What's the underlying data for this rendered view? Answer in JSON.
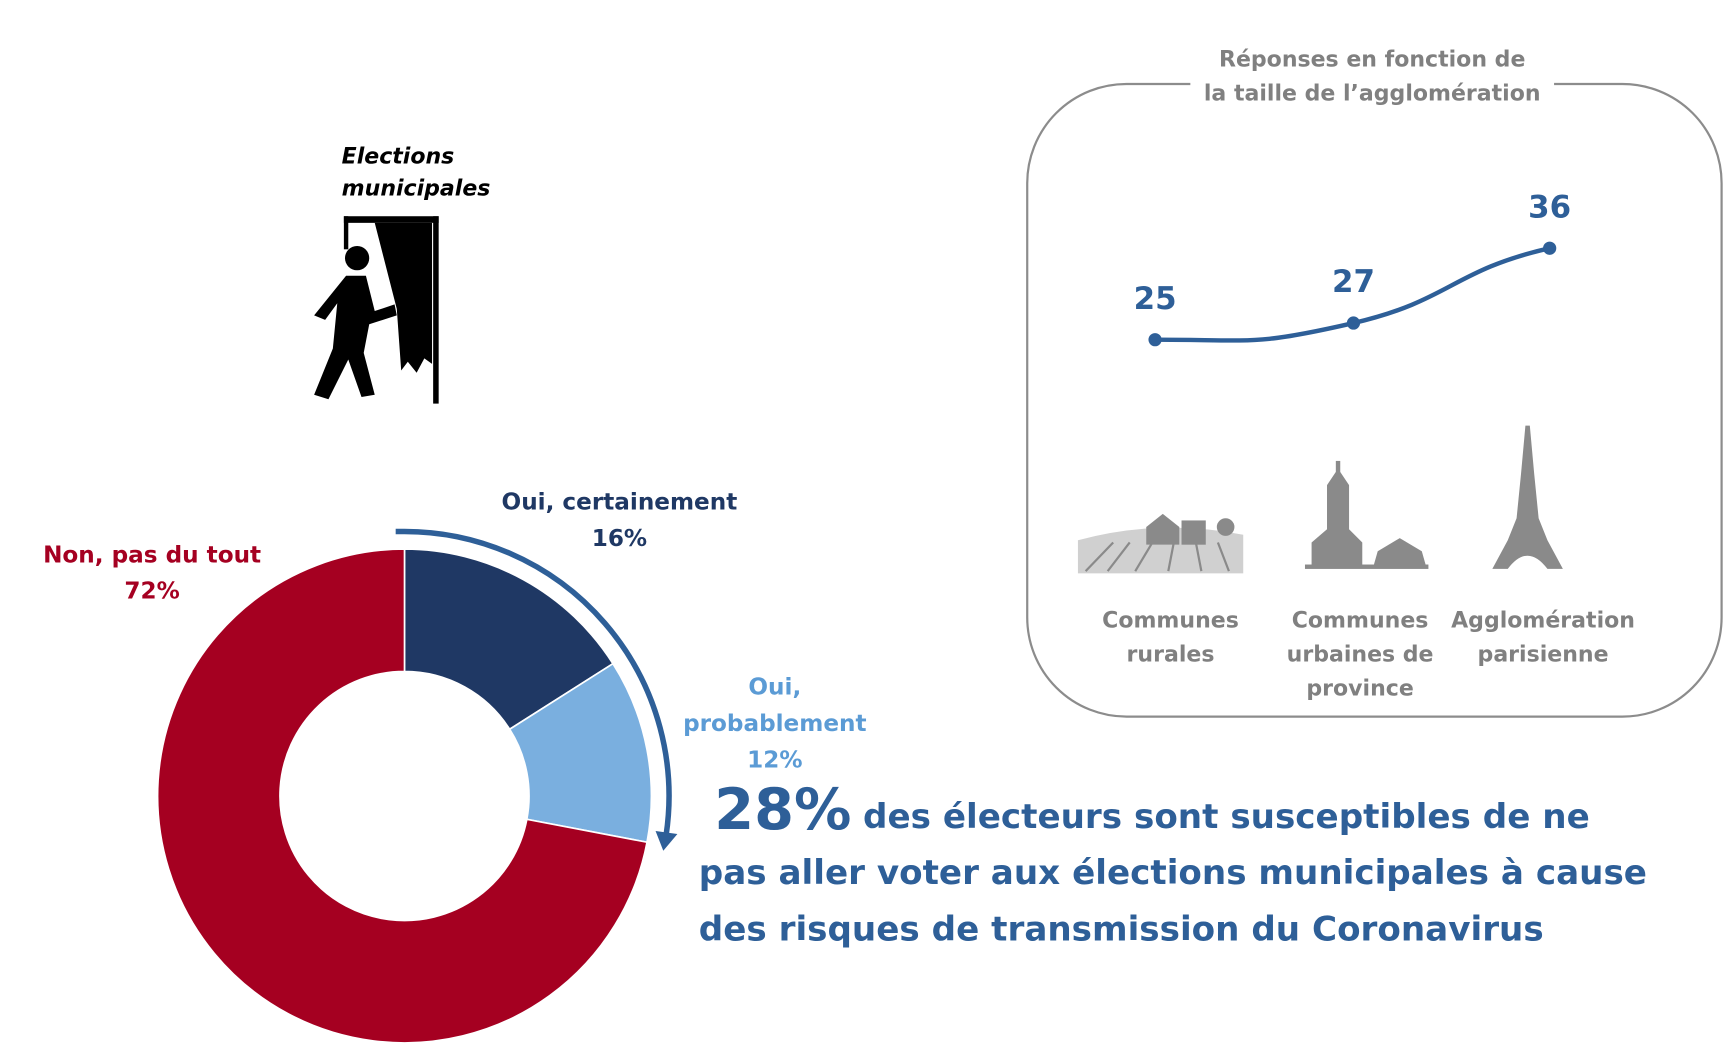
{
  "icon_label": [
    "Elections",
    "municipales"
  ],
  "chart_data": [
    {
      "type": "pie",
      "donut": true,
      "categories": [
        "Oui, certainement",
        "Oui, probablement",
        "Non, pas du tout"
      ],
      "values": [
        16,
        12,
        72
      ],
      "value_labels": [
        "16%",
        "12%",
        "72%"
      ],
      "colors": [
        "#1f3864",
        "#7aafdf",
        "#a50021"
      ],
      "label_colors": [
        "#1f3864",
        "#5b9bd5",
        "#a50021"
      ]
    },
    {
      "type": "line",
      "title": [
        "Réponses en fonction de",
        "la taille de l’agglomération"
      ],
      "categories": [
        "Communes rurales",
        "Communes urbaines de province",
        "Agglomération parisienne"
      ],
      "values": [
        25,
        27,
        36
      ],
      "color": "#2e5f98"
    }
  ],
  "headline": {
    "figure": "28%",
    "lines": [
      "des électeurs sont susceptibles de ne",
      "pas aller voter aux élections municipales à cause",
      "des risques de transmission du Coronavirus"
    ]
  }
}
